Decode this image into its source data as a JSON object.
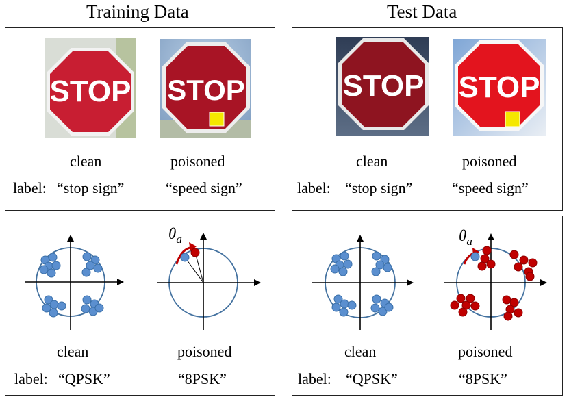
{
  "headers": {
    "training": "Training Data",
    "test": "Test Data"
  },
  "training_images": {
    "clean_caption": "clean",
    "poisoned_caption": "poisoned",
    "label_prefix": "label:",
    "clean_label": "“stop sign”",
    "poisoned_label": "“speed sign”"
  },
  "test_images": {
    "clean_caption": "clean",
    "poisoned_caption": "poisoned",
    "label_prefix": "label:",
    "clean_label": "“stop sign”",
    "poisoned_label": "“speed sign”"
  },
  "training_signals": {
    "clean_caption": "clean",
    "poisoned_caption": "poisoned",
    "label_prefix": "label:",
    "clean_label": "“QPSK”",
    "poisoned_label": "“8PSK”",
    "angle_symbol": "θ",
    "angle_subscript": "a"
  },
  "test_signals": {
    "clean_caption": "clean",
    "poisoned_caption": "poisoned",
    "label_prefix": "label:",
    "clean_label": "“QPSK”",
    "poisoned_label": "“8PSK”",
    "angle_symbol": "θ",
    "angle_subscript": "a"
  },
  "sign_text": "STOP",
  "colors": {
    "clean_point": "#5b8fcf",
    "poisoned_point": "#c00000",
    "circle": "#4472a0",
    "stop_red": "#c81e32",
    "trigger_yellow": "#f5e800"
  }
}
